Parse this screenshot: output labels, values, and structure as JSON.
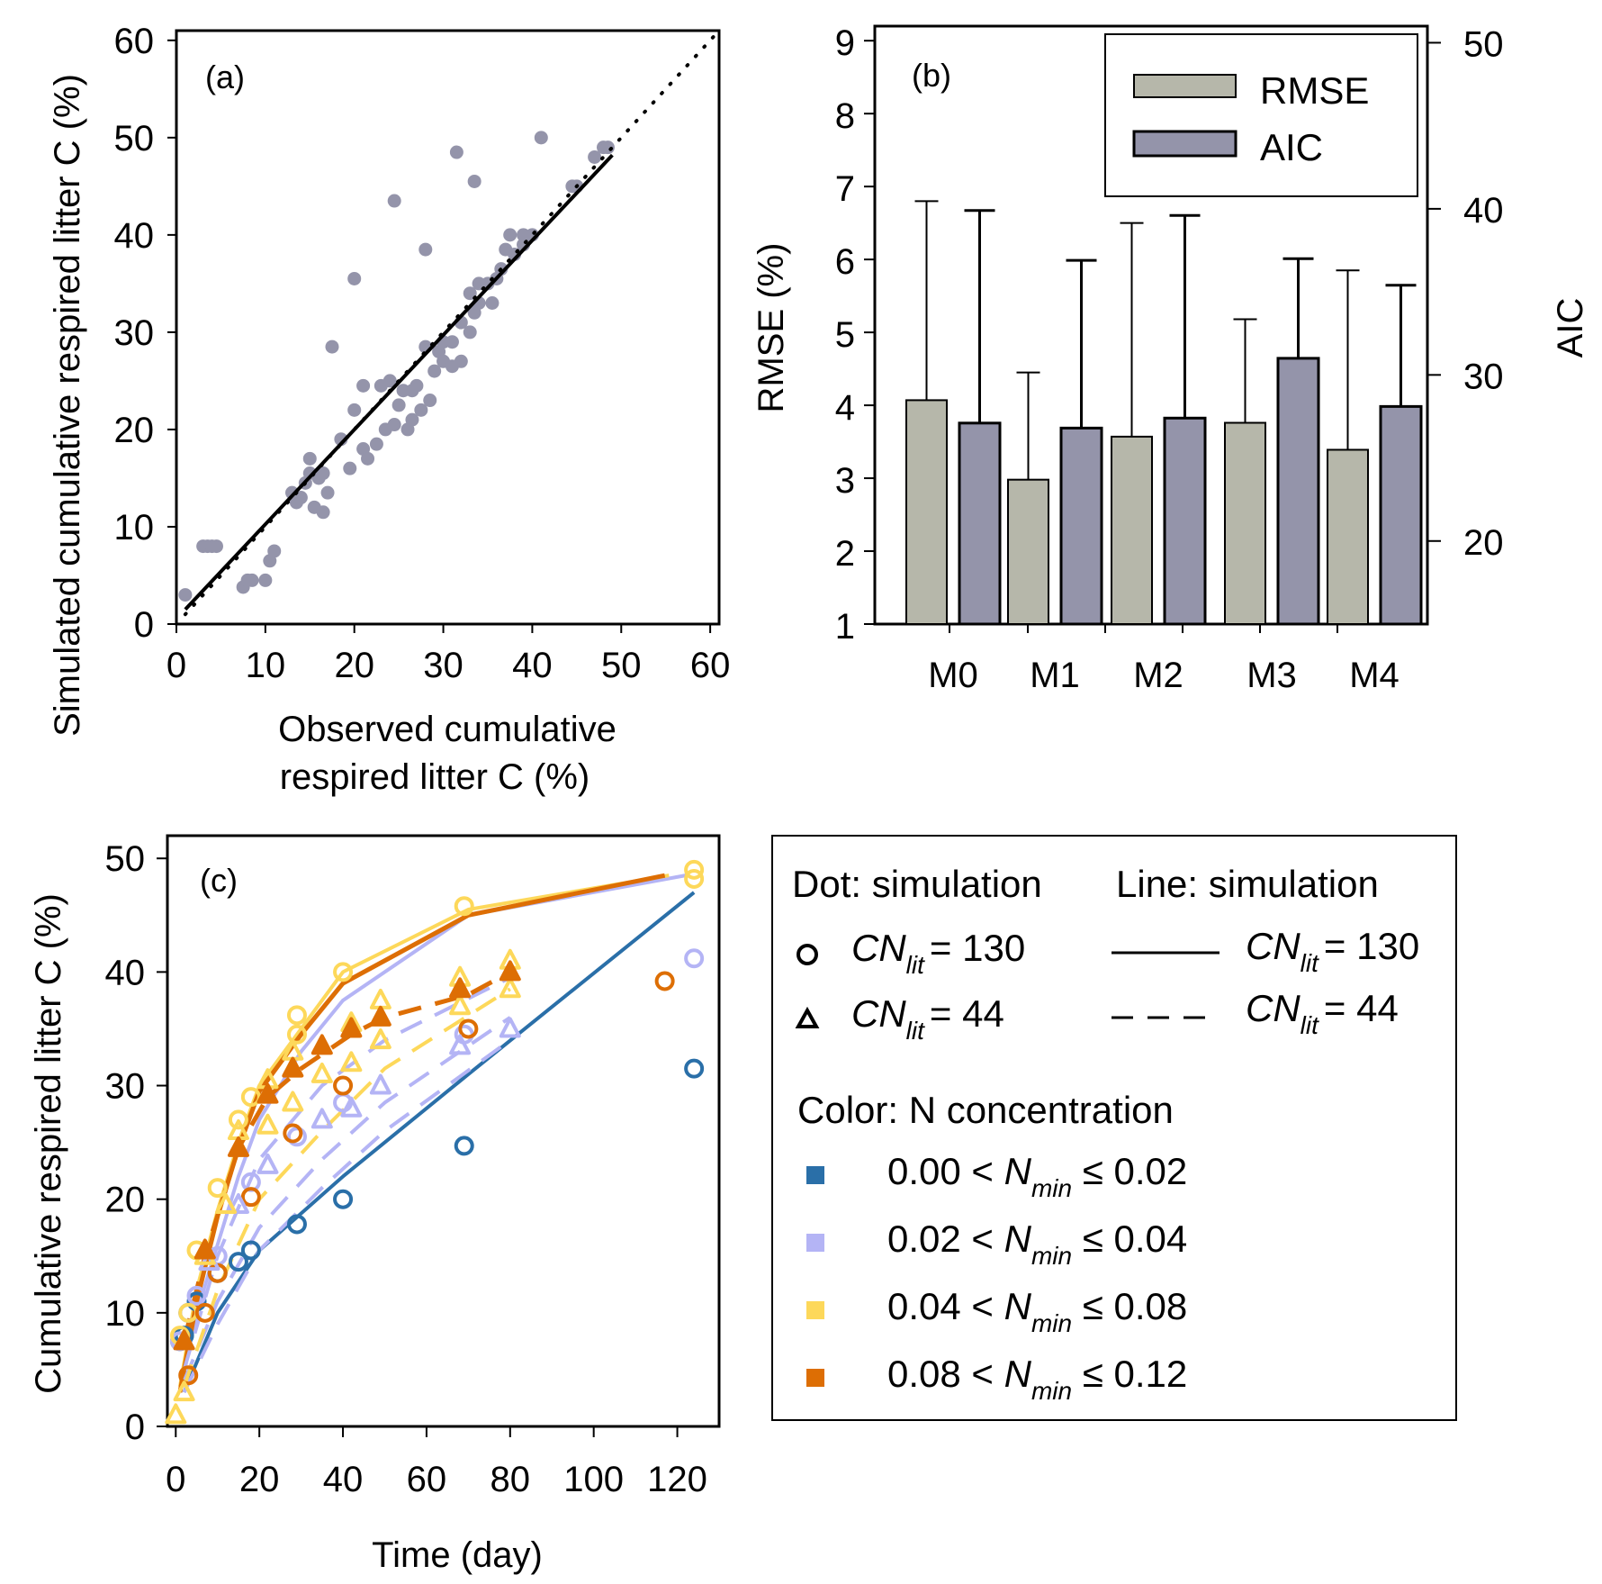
{
  "chart_data": [
    {
      "id": "a",
      "type": "scatter",
      "panel_label": "(a)",
      "xlabel": [
        "Observed cumulative",
        "respired litter C (%)"
      ],
      "ylabel": "Simulated cumulative respired litter C (%)",
      "xlim": [
        0,
        61
      ],
      "ylim": [
        0,
        61
      ],
      "xticks": [
        0,
        10,
        20,
        30,
        40,
        50,
        60
      ],
      "yticks": [
        0,
        10,
        20,
        30,
        40,
        50,
        60
      ],
      "point_color": "#9494aa",
      "points": [
        [
          1,
          3
        ],
        [
          3,
          8
        ],
        [
          3.5,
          8
        ],
        [
          4,
          8
        ],
        [
          4.5,
          8
        ],
        [
          7.5,
          3.8
        ],
        [
          8,
          4.5
        ],
        [
          8.5,
          4.5
        ],
        [
          10,
          4.5
        ],
        [
          10.5,
          6.5
        ],
        [
          11,
          7.5
        ],
        [
          13,
          13.5
        ],
        [
          13.5,
          12.5
        ],
        [
          14,
          13
        ],
        [
          14.5,
          14.5
        ],
        [
          15,
          17
        ],
        [
          15,
          15.5
        ],
        [
          15.5,
          12
        ],
        [
          16,
          15
        ],
        [
          16.5,
          15.5
        ],
        [
          16.5,
          11.5
        ],
        [
          17,
          13.5
        ],
        [
          17.5,
          28.5
        ],
        [
          18.5,
          19
        ],
        [
          19.5,
          16
        ],
        [
          20,
          22
        ],
        [
          20,
          35.5
        ],
        [
          21,
          18
        ],
        [
          21,
          24.5
        ],
        [
          21.5,
          17
        ],
        [
          22.5,
          18.5
        ],
        [
          23,
          24.5
        ],
        [
          23.5,
          20
        ],
        [
          24,
          25
        ],
        [
          24.5,
          43.5
        ],
        [
          24.5,
          20.5
        ],
        [
          25,
          22.5
        ],
        [
          25.5,
          24
        ],
        [
          26,
          20
        ],
        [
          26.5,
          21
        ],
        [
          26.5,
          24
        ],
        [
          27,
          24.5
        ],
        [
          27.5,
          22
        ],
        [
          28,
          28.5
        ],
        [
          28,
          38.5
        ],
        [
          28.5,
          23
        ],
        [
          29,
          26
        ],
        [
          29.5,
          28
        ],
        [
          30,
          29
        ],
        [
          30,
          27
        ],
        [
          31,
          26.5
        ],
        [
          31,
          29
        ],
        [
          31.5,
          48.5
        ],
        [
          32,
          31
        ],
        [
          32,
          27
        ],
        [
          33,
          30
        ],
        [
          33,
          34
        ],
        [
          33.5,
          32
        ],
        [
          33.5,
          45.5
        ],
        [
          34,
          35
        ],
        [
          34,
          33
        ],
        [
          35,
          35
        ],
        [
          35.5,
          33
        ],
        [
          36,
          35.5
        ],
        [
          36.5,
          36.5
        ],
        [
          37,
          38.5
        ],
        [
          37.5,
          40
        ],
        [
          38,
          38
        ],
        [
          39,
          40
        ],
        [
          39,
          39
        ],
        [
          40,
          40
        ],
        [
          41,
          50
        ],
        [
          44.5,
          45
        ],
        [
          45,
          45
        ],
        [
          47,
          48
        ],
        [
          48,
          49
        ],
        [
          48.5,
          49
        ]
      ],
      "fit_line": {
        "x": [
          1,
          49
        ],
        "y": [
          1.5,
          48.2
        ],
        "style": "solid",
        "color": "#000000"
      },
      "one_to_one_line": {
        "x": [
          1,
          61
        ],
        "y": [
          1,
          61
        ],
        "style": "dotted",
        "color": "#000000"
      }
    },
    {
      "id": "b",
      "type": "bar",
      "panel_label": "(b)",
      "categories": [
        "M0",
        "M1",
        "M2",
        "M3",
        "M4"
      ],
      "series": [
        {
          "name": "RMSE",
          "axis": "left",
          "color": "#b6b7aa",
          "values": [
            4.07,
            2.98,
            3.57,
            3.76,
            3.39
          ],
          "error_upper": [
            6.8,
            4.45,
            6.5,
            5.18,
            5.85
          ]
        },
        {
          "name": "AIC",
          "axis": "right",
          "color": "#9494aa",
          "values": [
            27.1,
            26.8,
            27.4,
            31.0,
            28.1
          ],
          "error_upper": [
            39.9,
            36.9,
            39.6,
            37.0,
            35.4
          ]
        }
      ],
      "ylabel_left": "RMSE (%)",
      "ylabel_right": "AIC",
      "ylim_left": [
        1,
        9.2
      ],
      "ylim_right": [
        15,
        51
      ],
      "yticks_left": [
        1,
        2,
        3,
        4,
        5,
        6,
        7,
        8,
        9
      ],
      "yticks_right": [
        20,
        30,
        40,
        50
      ],
      "legend": [
        {
          "label": "RMSE",
          "color": "#b6b7aa"
        },
        {
          "label": "AIC",
          "color": "#9494aa"
        }
      ],
      "legend_position": "top-right"
    },
    {
      "id": "c",
      "type": "line",
      "panel_label": "(c)",
      "xlabel": "Time (day)",
      "ylabel": "Cumulative respired litter C (%)",
      "xlim": [
        -2,
        130
      ],
      "ylim": [
        0,
        52
      ],
      "xticks": [
        0,
        20,
        40,
        60,
        80,
        100,
        120
      ],
      "yticks": [
        0,
        10,
        20,
        30,
        40,
        50
      ],
      "colors": {
        "n1": "#2a6fa8",
        "n2": "#b4b4f5",
        "n3": "#fdd85a",
        "n4": "#dd6e04"
      },
      "lines": [
        {
          "group": "n1",
          "cn": 130,
          "style": "solid",
          "x": [
            2,
            10,
            20,
            40,
            70,
            124
          ],
          "y": [
            3,
            10,
            15.5,
            22,
            31,
            47
          ]
        },
        {
          "group": "n2",
          "cn": 130,
          "style": "solid",
          "x": [
            1,
            5,
            10,
            15,
            20,
            30,
            40,
            70,
            122
          ],
          "y": [
            3,
            10,
            16,
            22,
            27,
            33,
            37.5,
            45,
            48.5
          ]
        },
        {
          "group": "n3",
          "cn": 130,
          "style": "solid",
          "x": [
            1,
            5,
            10,
            15,
            20,
            30,
            40,
            70,
            118
          ],
          "y": [
            3.5,
            12,
            19,
            25,
            30,
            35,
            40,
            45.5,
            48.5
          ]
        },
        {
          "group": "n4",
          "cn": 130,
          "style": "solid",
          "x": [
            1,
            5,
            10,
            15,
            20,
            30,
            40,
            70,
            117
          ],
          "y": [
            3,
            11,
            18.5,
            24.5,
            29.5,
            34.5,
            39,
            45,
            48.5
          ]
        },
        {
          "group": "n2",
          "cn": 44,
          "style": "dashed",
          "x": [
            2,
            10,
            20,
            35,
            50,
            80
          ],
          "y": [
            3,
            9,
            15.5,
            21,
            26,
            34
          ]
        },
        {
          "group": "n2",
          "cn": 44,
          "style": "dashed",
          "x": [
            2,
            10,
            20,
            35,
            50,
            80
          ],
          "y": [
            4,
            11,
            17.5,
            23.5,
            28.5,
            36
          ]
        },
        {
          "group": "n3",
          "cn": 44,
          "style": "dashed",
          "x": [
            2,
            10,
            20,
            35,
            50,
            80
          ],
          "y": [
            3.5,
            12,
            20,
            26,
            31.5,
            38.5
          ]
        },
        {
          "group": "n2",
          "cn": 44,
          "style": "dashed",
          "x": [
            2,
            10,
            20,
            35,
            50,
            80
          ],
          "y": [
            5,
            15,
            23.5,
            30,
            34,
            39.5
          ]
        },
        {
          "group": "n4",
          "cn": 44,
          "style": "dashed",
          "x": [
            2,
            7,
            15,
            22,
            30,
            42,
            50,
            70,
            80
          ],
          "y": [
            7.5,
            15,
            24.5,
            29,
            31.5,
            34.5,
            36,
            38,
            40
          ]
        }
      ],
      "points": [
        {
          "group": "n1",
          "cn": 130,
          "marker": "circle",
          "x": [
            1,
            2,
            3,
            5,
            10,
            15,
            18,
            29,
            40,
            69,
            124
          ],
          "y": [
            7.5,
            8,
            10,
            11,
            13.5,
            14.5,
            15.5,
            17.8,
            20,
            24.7,
            31.5
          ]
        },
        {
          "group": "n2",
          "cn": 130,
          "marker": "circle",
          "x": [
            1,
            3,
            5,
            10,
            18,
            29,
            40,
            69,
            124
          ],
          "y": [
            7.5,
            10,
            11.5,
            15,
            21.5,
            25.5,
            28.5,
            34.5,
            41.2
          ]
        },
        {
          "group": "n3",
          "cn": 130,
          "marker": "circle",
          "x": [
            1,
            3,
            5,
            10,
            15,
            18,
            29,
            29,
            40,
            69,
            124,
            124
          ],
          "y": [
            8,
            10,
            15.5,
            21,
            27,
            29,
            34.5,
            36.2,
            40,
            45.8,
            48.2,
            49
          ]
        },
        {
          "group": "n4",
          "cn": 130,
          "marker": "circle",
          "x": [
            3,
            7,
            10,
            18,
            28,
            40,
            70,
            117
          ],
          "y": [
            4.5,
            10,
            13.5,
            20.2,
            25.8,
            30,
            35,
            39.2
          ]
        },
        {
          "group": "n2",
          "cn": 44,
          "marker": "triangle-open",
          "x": [
            2,
            8,
            15,
            22,
            35,
            42,
            49,
            68,
            80
          ],
          "y": [
            7.5,
            14.5,
            19.5,
            23,
            27,
            28,
            30,
            33.5,
            35
          ]
        },
        {
          "group": "n3",
          "cn": 44,
          "marker": "triangle-open",
          "x": [
            0,
            2,
            7,
            12,
            15,
            22,
            28,
            35,
            42,
            49,
            68,
            80,
            80
          ],
          "y": [
            1,
            3,
            15,
            19.5,
            26,
            26.5,
            28.5,
            31,
            32,
            34,
            37,
            38.5,
            41
          ]
        },
        {
          "group": "n3",
          "cn": 44,
          "marker": "triangle-open",
          "x": [
            22,
            28,
            42,
            49,
            68
          ],
          "y": [
            30.5,
            33,
            35.5,
            37.5,
            39.5
          ]
        },
        {
          "group": "n4",
          "cn": 44,
          "marker": "triangle-filled",
          "x": [
            2,
            7,
            15,
            22,
            28,
            35,
            42,
            49,
            68,
            80
          ],
          "y": [
            7.5,
            15.5,
            24.5,
            29.2,
            31.5,
            33.5,
            35,
            36,
            38.5,
            40
          ]
        }
      ]
    }
  ],
  "legend_c": {
    "dot_header": "Dot: simulation",
    "line_header": "Line: simulation",
    "cn_prefix": "CN",
    "cn_sub": "lit",
    "cn130": "= 130",
    "cn44": "= 44",
    "color_header": "Color: N concentration",
    "nmin_prefix": "N",
    "nmin_sub": "min",
    "ranges": [
      {
        "low": "0.00 <",
        "high": "≤ 0.02",
        "color": "#2a6fa8"
      },
      {
        "low": "0.02 <",
        "high": "≤ 0.04",
        "color": "#b4b4f5"
      },
      {
        "low": "0.04 <",
        "high": "≤ 0.08",
        "color": "#fdd85a"
      },
      {
        "low": "0.08 <",
        "high": "≤ 0.12",
        "color": "#dd6e04"
      }
    ]
  }
}
